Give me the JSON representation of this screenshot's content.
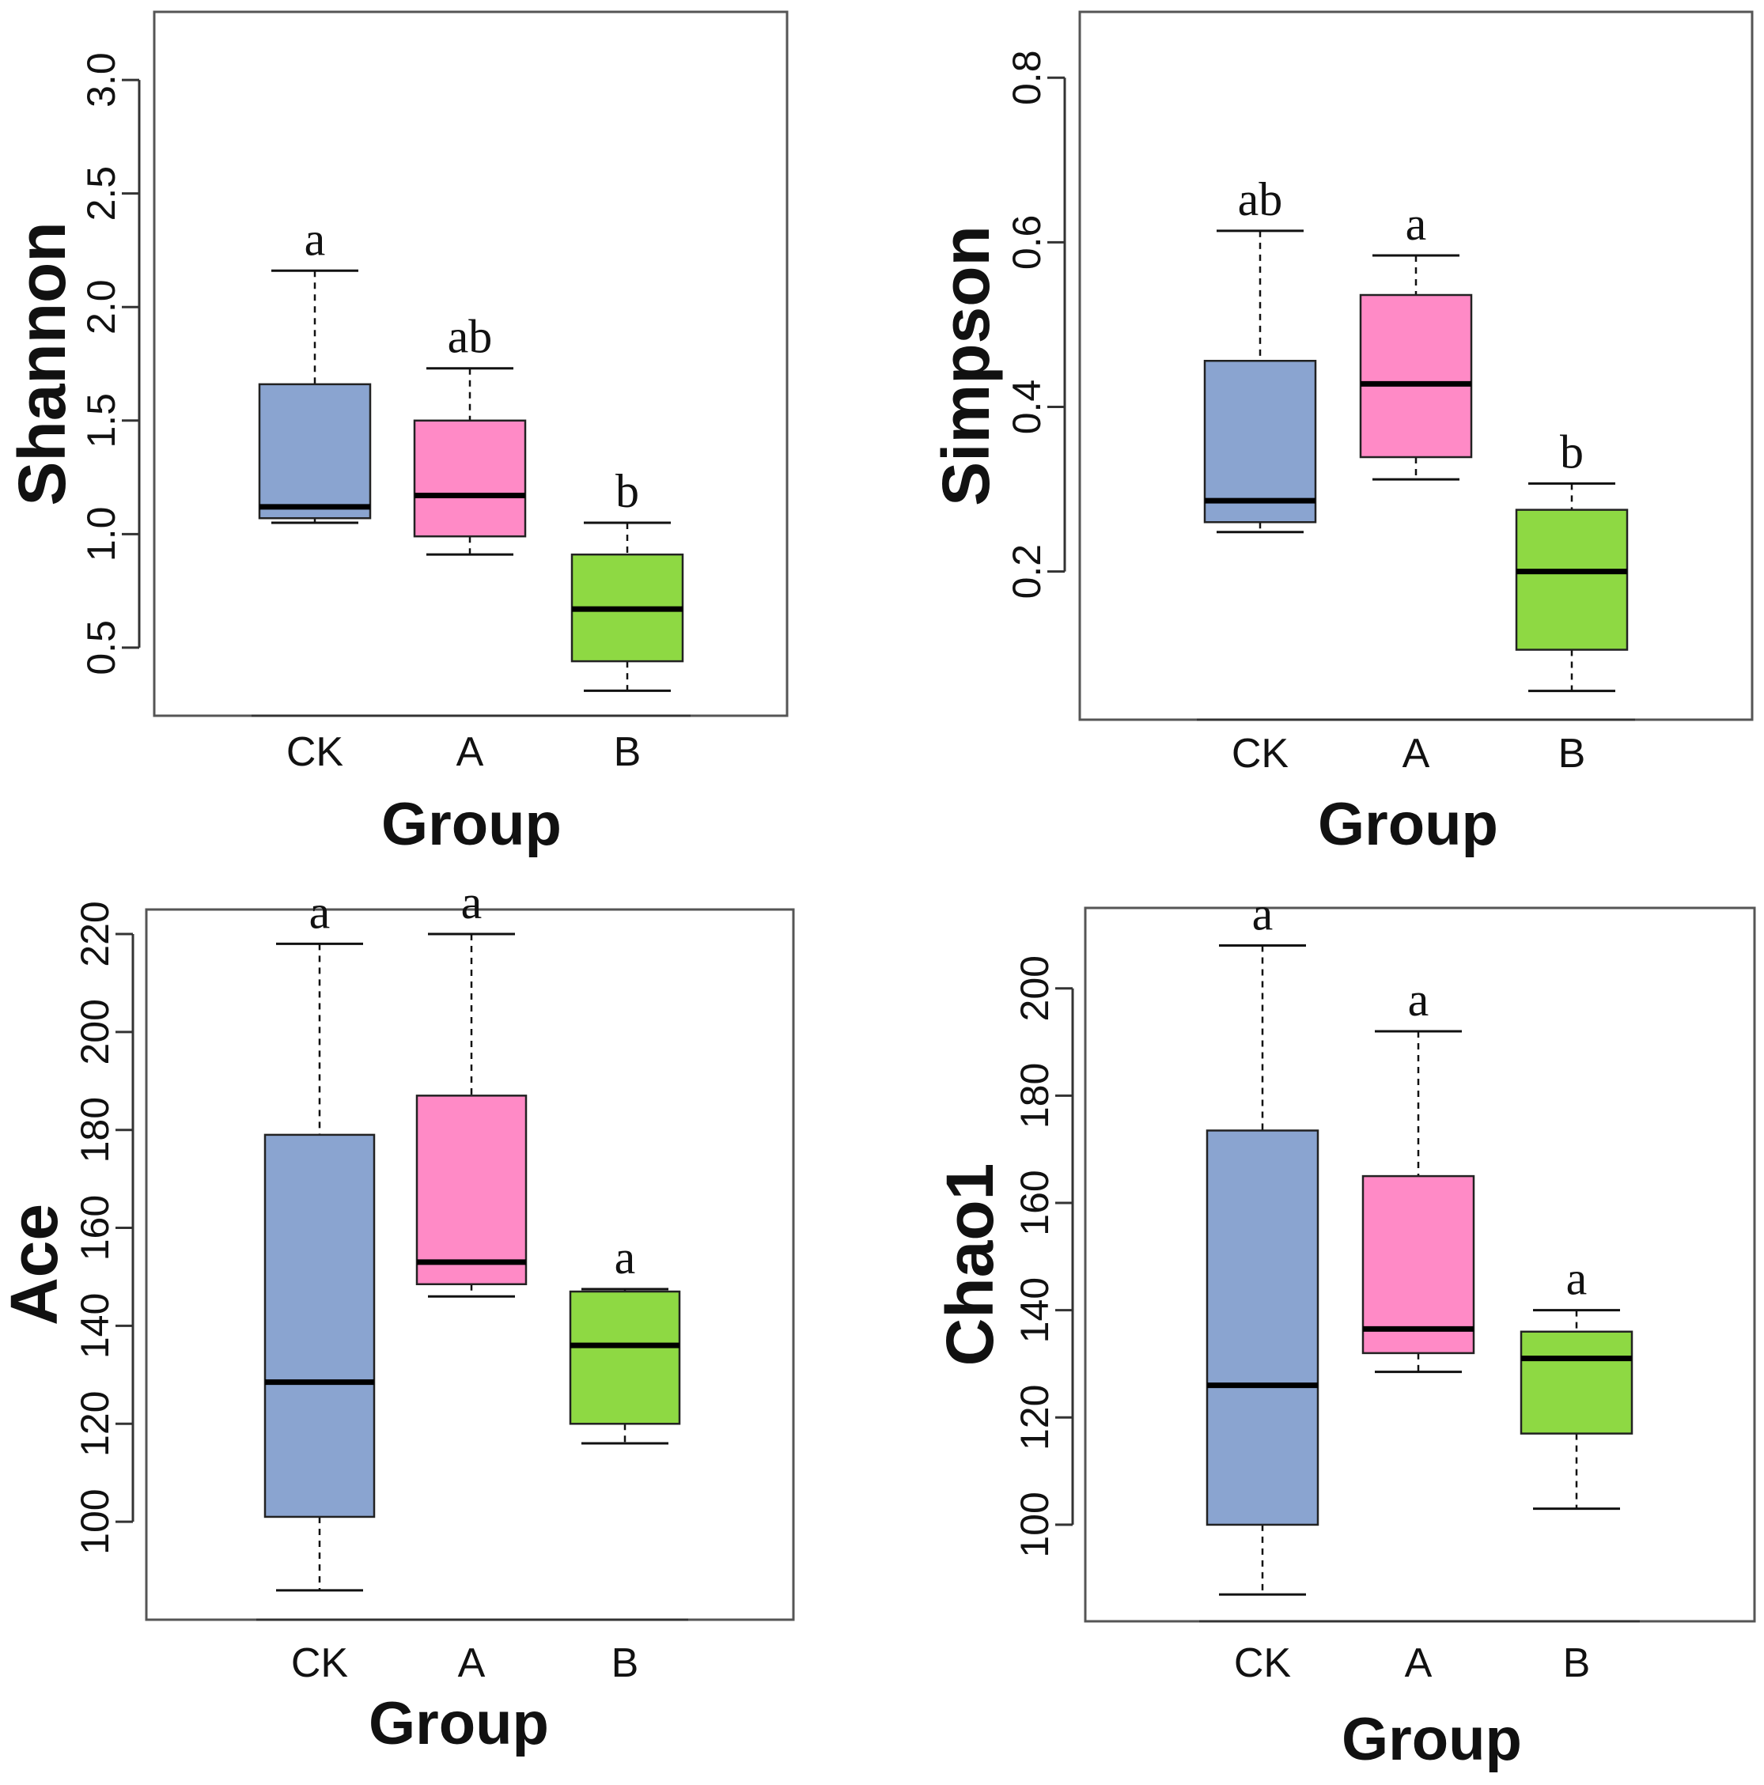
{
  "chart_data": [
    {
      "type": "box",
      "ylabel": "Shannon",
      "xlabel": "Group",
      "categories": [
        "CK",
        "A",
        "B"
      ],
      "colors": [
        "#8aa4d0",
        "#ff8ac6",
        "#8ed943"
      ],
      "ylim": [
        0.2,
        3.3
      ],
      "yticks": [
        0.5,
        1.0,
        1.5,
        2.0,
        2.5,
        3.0
      ],
      "ytick_labels": [
        "0.5",
        "1.0",
        "1.5",
        "2.0",
        "2.5",
        "3.0"
      ],
      "boxes": [
        {
          "min": 1.05,
          "q1": 1.07,
          "median": 1.12,
          "q3": 1.66,
          "max": 2.16,
          "label": "a"
        },
        {
          "min": 0.91,
          "q1": 0.99,
          "median": 1.17,
          "q3": 1.5,
          "max": 1.73,
          "label": "ab"
        },
        {
          "min": 0.31,
          "q1": 0.44,
          "median": 0.67,
          "q3": 0.91,
          "max": 1.05,
          "label": "b"
        }
      ]
    },
    {
      "type": "box",
      "ylabel": "Simpson",
      "xlabel": "Group",
      "categories": [
        "CK",
        "A",
        "B"
      ],
      "colors": [
        "#8aa4d0",
        "#ff8ac6",
        "#8ed943"
      ],
      "ylim": [
        0.02,
        0.88
      ],
      "yticks": [
        0.2,
        0.4,
        0.6,
        0.8
      ],
      "ytick_labels": [
        "0.2",
        "0.4",
        "0.6",
        "0.8"
      ],
      "boxes": [
        {
          "min": 0.248,
          "q1": 0.26,
          "median": 0.286,
          "q3": 0.456,
          "max": 0.614,
          "label": "ab"
        },
        {
          "min": 0.312,
          "q1": 0.339,
          "median": 0.428,
          "q3": 0.536,
          "max": 0.584,
          "label": "a"
        },
        {
          "min": 0.055,
          "q1": 0.105,
          "median": 0.2,
          "q3": 0.275,
          "max": 0.307,
          "label": "b"
        }
      ]
    },
    {
      "type": "box",
      "ylabel": "Ace",
      "xlabel": "Group",
      "categories": [
        "CK",
        "A",
        "B"
      ],
      "colors": [
        "#8aa4d0",
        "#ff8ac6",
        "#8ed943"
      ],
      "ylim": [
        80,
        225
      ],
      "yticks": [
        100,
        120,
        140,
        160,
        180,
        200,
        220
      ],
      "ytick_labels": [
        "100",
        "120",
        "140",
        "160",
        "180",
        "200",
        "220"
      ],
      "boxes": [
        {
          "min": 86,
          "q1": 101,
          "median": 128.5,
          "q3": 179,
          "max": 218,
          "label": "a"
        },
        {
          "min": 146,
          "q1": 148.5,
          "median": 153,
          "q3": 187,
          "max": 220,
          "label": "a"
        },
        {
          "min": 116,
          "q1": 120,
          "median": 136,
          "q3": 147,
          "max": 147.5,
          "label": "a"
        }
      ]
    },
    {
      "type": "box",
      "ylabel": "Chao1",
      "xlabel": "Group",
      "categories": [
        "CK",
        "A",
        "B"
      ],
      "colors": [
        "#8aa4d0",
        "#ff8ac6",
        "#8ed943"
      ],
      "ylim": [
        82,
        215
      ],
      "yticks": [
        100,
        120,
        140,
        160,
        180,
        200
      ],
      "ytick_labels": [
        "100",
        "120",
        "140",
        "160",
        "180",
        "200"
      ],
      "boxes": [
        {
          "min": 87,
          "q1": 100,
          "median": 126,
          "q3": 173.5,
          "max": 208,
          "label": "a"
        },
        {
          "min": 128.5,
          "q1": 132,
          "median": 136.5,
          "q3": 165,
          "max": 192,
          "label": "a"
        },
        {
          "min": 103,
          "q1": 117,
          "median": 131,
          "q3": 136,
          "max": 140,
          "label": "a"
        }
      ]
    }
  ]
}
